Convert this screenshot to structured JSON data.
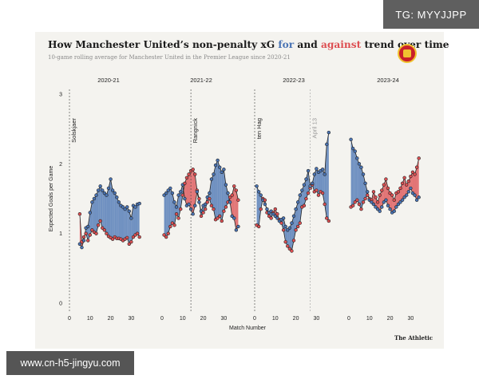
{
  "watermarks": {
    "top_right": "TG: MYYJJPP",
    "bottom_left": "www.cn-h5-jingyu.com"
  },
  "header": {
    "title_before": "How Manchester United’s non-penalty xG ",
    "title_for": "for",
    "title_middle": " and ",
    "title_against": "against",
    "title_after": " trend over time",
    "subtitle": "10-game rolling average for Manchester United in the Premier League since 2020-21"
  },
  "brand": "The Athletic",
  "chart_data": {
    "type": "line",
    "ylabel": "Expected Goals per Game",
    "xlabel": "Match Number",
    "ylim": [
      0,
      3
    ],
    "yticks": [
      0,
      1,
      2,
      3
    ],
    "xticks": [
      0,
      10,
      20,
      30
    ],
    "grid": false,
    "colors": {
      "for": "#4a74b4",
      "against": "#dd4f52"
    },
    "series_names": [
      "for",
      "against"
    ],
    "panels": [
      {
        "label": "2020-21",
        "xlim": [
          0,
          38
        ],
        "x_start": 5,
        "for": [
          0.85,
          0.8,
          0.9,
          1.08,
          1.1,
          1.3,
          1.45,
          1.5,
          1.55,
          1.62,
          1.68,
          1.62,
          1.58,
          1.55,
          1.65,
          1.78,
          1.62,
          1.58,
          1.52,
          1.45,
          1.4,
          1.38,
          1.35,
          1.38,
          1.32,
          1.22,
          1.4,
          1.38,
          1.42,
          1.43
        ],
        "against": [
          1.28,
          0.88,
          0.95,
          1.0,
          0.9,
          0.98,
          1.05,
          1.02,
          1.0,
          1.12,
          1.18,
          1.08,
          1.05,
          1.0,
          0.96,
          0.94,
          0.92,
          0.95,
          0.93,
          0.93,
          0.92,
          0.9,
          0.92,
          0.94,
          0.85,
          0.88,
          0.95,
          0.98,
          1.0,
          0.95
        ],
        "annotations": [
          {
            "text": "Solskjaer",
            "x": 0
          }
        ]
      },
      {
        "label": "2021-22",
        "xlim": [
          0,
          38
        ],
        "x_start": 1,
        "for": [
          1.55,
          1.58,
          1.62,
          1.65,
          1.58,
          1.45,
          1.38,
          1.55,
          1.6,
          1.7,
          1.5,
          1.4,
          1.42,
          1.35,
          1.28,
          1.4,
          1.6,
          1.45,
          1.32,
          1.4,
          1.42,
          1.52,
          1.58,
          1.78,
          1.85,
          1.98,
          2.05,
          1.95,
          1.88,
          1.92,
          1.7,
          1.58,
          1.45,
          1.25,
          1.22,
          1.05,
          1.1
        ],
        "against": [
          0.98,
          0.95,
          1.0,
          1.1,
          1.15,
          1.12,
          1.28,
          1.22,
          1.35,
          1.55,
          1.72,
          1.8,
          1.85,
          1.9,
          1.92,
          1.85,
          1.62,
          1.5,
          1.25,
          1.3,
          1.35,
          1.45,
          1.5,
          1.4,
          1.35,
          1.2,
          1.22,
          1.25,
          1.18,
          1.32,
          1.38,
          1.45,
          1.52,
          1.55,
          1.68,
          1.62,
          1.48
        ],
        "annotations": [
          {
            "text": "Rangnick",
            "x": 14
          }
        ]
      },
      {
        "label": "2022-23",
        "xlim": [
          0,
          38
        ],
        "x_start": 1,
        "for": [
          1.68,
          1.6,
          1.55,
          1.48,
          1.42,
          1.35,
          1.3,
          1.32,
          1.28,
          1.25,
          1.22,
          1.18,
          1.2,
          1.22,
          1.1,
          1.05,
          1.08,
          1.15,
          1.25,
          1.35,
          1.45,
          1.55,
          1.62,
          1.7,
          1.78,
          1.9,
          1.68,
          1.72,
          1.85,
          1.93,
          1.88,
          1.9,
          1.92,
          1.85,
          2.28,
          2.45
        ],
        "against": [
          1.12,
          1.1,
          1.35,
          1.5,
          1.48,
          1.3,
          1.25,
          1.22,
          1.3,
          1.35,
          1.28,
          1.2,
          1.15,
          1.05,
          0.88,
          0.82,
          0.78,
          0.75,
          0.9,
          1.05,
          1.1,
          1.15,
          1.38,
          1.4,
          1.5,
          1.58,
          1.65,
          1.7,
          1.6,
          1.62,
          1.55,
          1.6,
          1.58,
          1.42,
          1.22,
          1.18
        ],
        "annotations": [
          {
            "text": "ten Hag",
            "x": 0
          },
          {
            "text": "April 13",
            "x": 27
          }
        ]
      },
      {
        "label": "2023-24",
        "xlim": [
          0,
          38
        ],
        "x_start": 1,
        "for": [
          2.35,
          2.22,
          2.18,
          2.08,
          2.0,
          1.95,
          1.85,
          1.72,
          1.6,
          1.48,
          1.45,
          1.42,
          1.38,
          1.35,
          1.32,
          1.38,
          1.45,
          1.48,
          1.4,
          1.35,
          1.3,
          1.32,
          1.38,
          1.42,
          1.45,
          1.48,
          1.52,
          1.55,
          1.6,
          1.65,
          1.58,
          1.55,
          1.48,
          1.52
        ],
        "against": [
          1.38,
          1.4,
          1.45,
          1.48,
          1.42,
          1.35,
          1.45,
          1.5,
          1.55,
          1.5,
          1.48,
          1.6,
          1.52,
          1.45,
          1.55,
          1.62,
          1.7,
          1.78,
          1.65,
          1.58,
          1.55,
          1.48,
          1.58,
          1.6,
          1.65,
          1.72,
          1.8,
          1.7,
          1.75,
          1.82,
          1.88,
          1.85,
          1.95,
          2.08
        ]
      }
    ]
  }
}
